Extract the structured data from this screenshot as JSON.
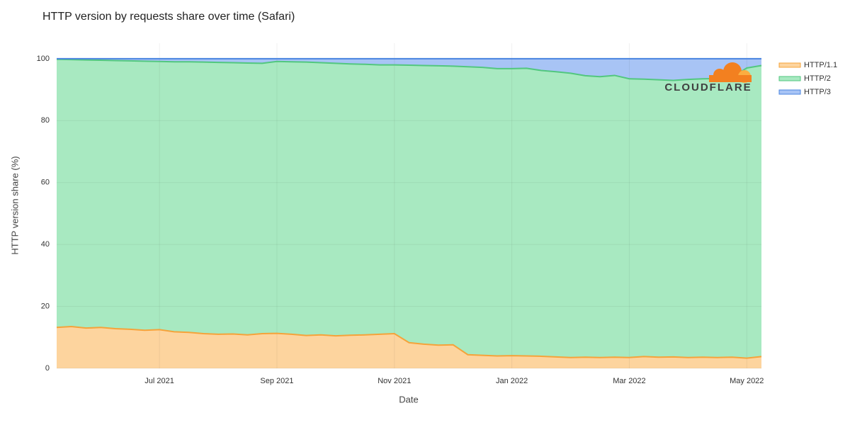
{
  "chart_data": {
    "type": "stacked-area",
    "title": "HTTP version by requests share over time (Safari)",
    "x_label": "Date",
    "y_label": "HTTP version share (%)",
    "watermark": "CLOUDFLARE",
    "categories": [
      null,
      null,
      null,
      null,
      null,
      null,
      null,
      "Jul 2021",
      null,
      null,
      null,
      null,
      null,
      null,
      null,
      "Sep 2021",
      null,
      null,
      null,
      null,
      null,
      null,
      null,
      "Nov 2021",
      null,
      null,
      null,
      null,
      null,
      null,
      null,
      "Jan 2022",
      null,
      null,
      null,
      null,
      null,
      null,
      null,
      "Mar 2022",
      null,
      null,
      null,
      null,
      null,
      null,
      null,
      "May 2022",
      null
    ],
    "series": [
      {
        "name": "HTTP/1.1",
        "color": "#f5a33a",
        "fill": "#fdd49e",
        "values": [
          13.2,
          13.5,
          13,
          13.2,
          12.8,
          12.6,
          12.3,
          12.5,
          11.8,
          11.6,
          11.2,
          11,
          11.1,
          10.8,
          11.2,
          11.3,
          11,
          10.6,
          10.8,
          10.5,
          10.7,
          10.8,
          11,
          11.2,
          8.3,
          7.8,
          7.5,
          7.6,
          4.4,
          4.2,
          4,
          4.1,
          4,
          3.9,
          3.7,
          3.5,
          3.6,
          3.5,
          3.6,
          3.5,
          3.8,
          3.6,
          3.7,
          3.5,
          3.6,
          3.5,
          3.6,
          3.3,
          3.8
        ]
      },
      {
        "name": "HTTP/2",
        "color": "#52c77f",
        "fill": "#a8e9c1",
        "values": [
          86.6,
          86.2,
          86.6,
          86.3,
          86.6,
          86.7,
          86.9,
          86.6,
          87.2,
          87.4,
          87.7,
          87.8,
          87.6,
          87.8,
          87.3,
          87.8,
          88,
          88.3,
          87.9,
          88,
          87.6,
          87.4,
          87,
          86.8,
          89.6,
          90,
          90.2,
          90,
          93,
          93,
          92.8,
          92.7,
          92.9,
          92.3,
          92.1,
          91.8,
          90.9,
          90.7,
          91,
          90,
          89.6,
          89.6,
          89.3,
          89.8,
          89.9,
          90.1,
          90.4,
          93.7,
          94
        ]
      },
      {
        "name": "HTTP/3",
        "color": "#4a85e0",
        "fill": "#a8c4f5",
        "values": [
          0.2,
          0.3,
          0.4,
          0.5,
          0.6,
          0.7,
          0.8,
          0.9,
          1,
          1,
          1.1,
          1.2,
          1.3,
          1.4,
          1.5,
          0.9,
          1,
          1.1,
          1.3,
          1.5,
          1.7,
          1.8,
          2,
          2,
          2.1,
          2.2,
          2.3,
          2.4,
          2.6,
          2.8,
          3.2,
          3.2,
          3.1,
          3.8,
          4.2,
          4.7,
          5.5,
          5.8,
          5.4,
          6.5,
          6.6,
          6.8,
          7,
          6.7,
          6.5,
          6.4,
          6,
          3,
          2.2
        ]
      }
    ],
    "ylim": [
      0,
      105
    ],
    "yticks": [
      0,
      20,
      40,
      60,
      80,
      100
    ],
    "grid": true,
    "legend": "right"
  }
}
